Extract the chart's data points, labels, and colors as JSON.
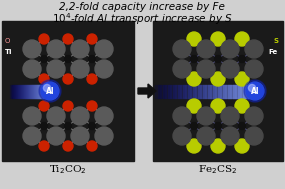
{
  "title_line1": "2,2-fold capacity increase by Fe",
  "title_line2_pre": "10",
  "title_superscript": "4",
  "title_line2_post": "-fold Al transport increase by S",
  "caption_left": "Ti$_2$CO$_2$",
  "caption_right": "Fe$_2$CS$_2$",
  "fig_width": 2.85,
  "fig_height": 1.89,
  "dpi": 100,
  "bg_left": "#1a1a1a",
  "bg_right": "#1a1a1a",
  "bg_main": "#d0d0d0",
  "ti_color": "#5a5a5a",
  "o_color": "#cc2200",
  "fe_color": "#484848",
  "s_color": "#b8cc00",
  "c_color": "#1a1a1a",
  "al_color": "#2233cc",
  "bond_o_color": "#cc6688",
  "bond_fe_color": "#3355bb",
  "bond_s_color": "#888800",
  "arrow_color": "#111111",
  "title_fontsize": 7.5,
  "caption_fontsize": 7.5
}
